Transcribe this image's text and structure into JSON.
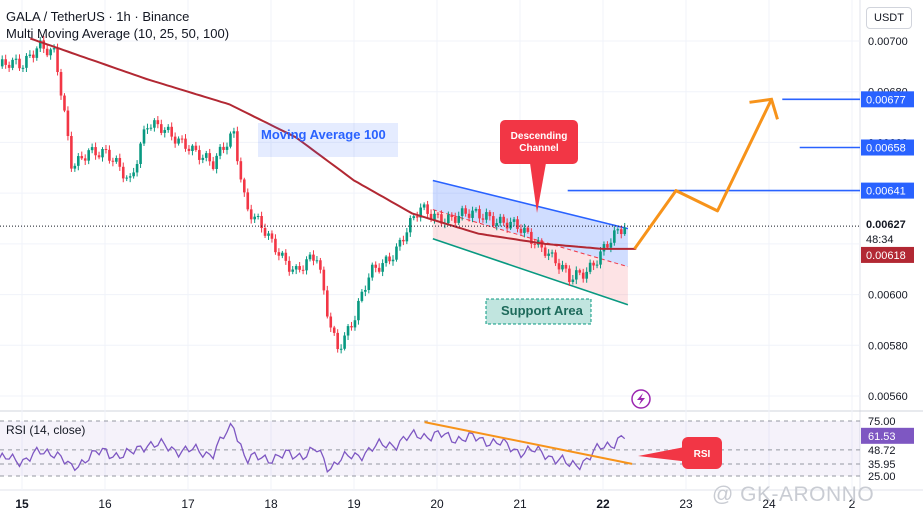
{
  "header": {
    "symbol_line": "GALA / TetherUS · 1h · Binance",
    "indicator_line": "Multi Moving Average (10, 25, 50, 100)",
    "currency": "USDT"
  },
  "annotations": {
    "ma100_label": "Moving Average 100",
    "channel_label": "Descending Channel",
    "support_label": "Support Area",
    "rsi_callout": "RSI",
    "watermark": "@ GK-ARONNO"
  },
  "price_axis": {
    "ticks": [
      "0.00700",
      "0.00680",
      "0.00660",
      "0.00640",
      "0.00620",
      "0.00600",
      "0.00580",
      "0.00560"
    ],
    "markers": [
      {
        "label": "0.00677",
        "color": "#2962ff"
      },
      {
        "label": "0.00658",
        "color": "#2962ff"
      },
      {
        "label": "0.00641",
        "color": "#2962ff"
      },
      {
        "label": "0.00627",
        "color": "#131722"
      },
      {
        "label": "48:34",
        "color": "#131722"
      },
      {
        "label": "0.00618",
        "color": "#b22833"
      }
    ]
  },
  "rsi": {
    "title": "RSI (14, close)",
    "ticks": [
      "75.00",
      "48.72",
      "35.95",
      "25.00"
    ],
    "current": "61.53"
  },
  "time_axis": {
    "labels": [
      "15",
      "16",
      "17",
      "18",
      "19",
      "20",
      "21",
      "22",
      "23",
      "24",
      "2"
    ]
  },
  "colors": {
    "up": "#089981",
    "down": "#f23645",
    "ma100": "#b22833",
    "target": "#2962ff",
    "projection": "#f7931a",
    "channel_top": "#2962ff",
    "channel_bottom": "#089981",
    "rsi_line": "#7e57c2"
  },
  "chart_data": [
    {
      "type": "candlestick",
      "title": "GALA / TetherUS · 1h · Binance",
      "x_labels": [
        "15",
        "16",
        "17",
        "18",
        "19",
        "20",
        "21",
        "22",
        "23",
        "24"
      ],
      "ylim": [
        0.00555,
        0.00712
      ],
      "last_price": 0.00627,
      "moving_average_100_last": 0.00618,
      "target_levels": [
        0.00641,
        0.00658,
        0.00677
      ],
      "price_path": [
        [
          15.0,
          0.0069
        ],
        [
          15.2,
          0.007
        ],
        [
          15.4,
          0.00694
        ],
        [
          15.6,
          0.0065
        ],
        [
          15.8,
          0.00658
        ],
        [
          16.0,
          0.00655
        ],
        [
          16.3,
          0.00645
        ],
        [
          16.5,
          0.00668
        ],
        [
          16.8,
          0.00662
        ],
        [
          17.0,
          0.0066
        ],
        [
          17.3,
          0.0065
        ],
        [
          17.55,
          0.00665
        ],
        [
          17.7,
          0.00635
        ],
        [
          18.0,
          0.0062
        ],
        [
          18.3,
          0.0061
        ],
        [
          18.55,
          0.00614
        ],
        [
          18.7,
          0.0059
        ],
        [
          18.8,
          0.0058
        ],
        [
          19.0,
          0.0059
        ],
        [
          19.2,
          0.00608
        ],
        [
          19.5,
          0.00618
        ],
        [
          19.8,
          0.00633
        ],
        [
          20.2,
          0.0063
        ],
        [
          20.6,
          0.00632
        ],
        [
          21.0,
          0.00625
        ],
        [
          21.3,
          0.00619
        ],
        [
          21.6,
          0.00605
        ],
        [
          21.8,
          0.0061
        ],
        [
          22.0,
          0.00618
        ],
        [
          22.3,
          0.00627
        ]
      ],
      "projection_path": [
        [
          22.3,
          0.00618
        ],
        [
          22.8,
          0.00641
        ],
        [
          23.3,
          0.00633
        ],
        [
          23.95,
          0.00677
        ]
      ]
    },
    {
      "type": "line",
      "title": "RSI (14, close)",
      "ylim": [
        20,
        80
      ],
      "levels": [
        75.0,
        48.72,
        35.95,
        25.0
      ],
      "points": [
        [
          15.0,
          40
        ],
        [
          15.2,
          45
        ],
        [
          15.4,
          48
        ],
        [
          15.6,
          30
        ],
        [
          15.8,
          44
        ],
        [
          16.0,
          46
        ],
        [
          16.3,
          44
        ],
        [
          16.5,
          55
        ],
        [
          16.8,
          50
        ],
        [
          17.0,
          48
        ],
        [
          17.3,
          46
        ],
        [
          17.55,
          72
        ],
        [
          17.7,
          40
        ],
        [
          18.0,
          42
        ],
        [
          18.3,
          44
        ],
        [
          18.55,
          48
        ],
        [
          18.7,
          32
        ],
        [
          18.8,
          40
        ],
        [
          19.0,
          42
        ],
        [
          19.2,
          50
        ],
        [
          19.5,
          55
        ],
        [
          19.8,
          63
        ],
        [
          20.2,
          60
        ],
        [
          20.6,
          58
        ],
        [
          21.0,
          48
        ],
        [
          21.3,
          46
        ],
        [
          21.6,
          34
        ],
        [
          21.8,
          40
        ],
        [
          22.0,
          52
        ],
        [
          22.3,
          61.53
        ]
      ]
    }
  ]
}
